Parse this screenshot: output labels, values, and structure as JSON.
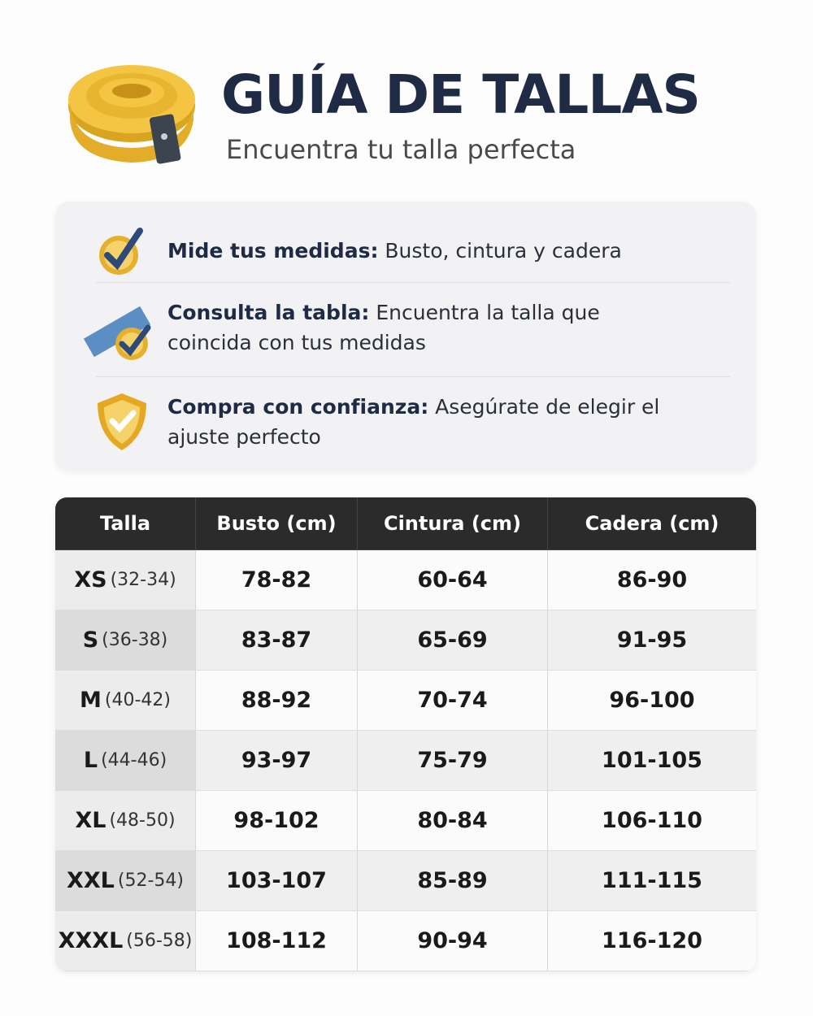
{
  "header": {
    "title": "GUÍA DE TALLAS",
    "subtitle": "Encuentra tu talla perfecta"
  },
  "steps": [
    {
      "label": "Mide tus medidas:",
      "text": "Busto, cintura y cadera"
    },
    {
      "label": "Consulta la tabla:",
      "text": "Encuentra la talla que coincida con tus medidas"
    },
    {
      "label": "Compra con confianza:",
      "text": "Asegúrate de elegir el ajuste perfecto"
    }
  ],
  "table": {
    "columns": [
      "Talla",
      "Busto (cm)",
      "Cintura (cm)",
      "Cadera (cm)"
    ],
    "rows": [
      {
        "size": "XS",
        "range": "(32-34)",
        "busto": "78-82",
        "cintura": "60-64",
        "cadera": "86-90"
      },
      {
        "size": "S",
        "range": "(36-38)",
        "busto": "83-87",
        "cintura": "65-69",
        "cadera": "91-95"
      },
      {
        "size": "M",
        "range": "(40-42)",
        "busto": "88-92",
        "cintura": "70-74",
        "cadera": "96-100"
      },
      {
        "size": "L",
        "range": "(44-46)",
        "busto": "93-97",
        "cintura": "75-79",
        "cadera": "101-105"
      },
      {
        "size": "XL",
        "range": "(48-50)",
        "busto": "98-102",
        "cintura": "80-84",
        "cadera": "106-110"
      },
      {
        "size": "XXL",
        "range": "(52-54)",
        "busto": "103-107",
        "cintura": "85-89",
        "cadera": "111-115"
      },
      {
        "size": "XXXL",
        "range": "(56-58)",
        "busto": "108-112",
        "cintura": "90-94",
        "cadera": "116-120"
      }
    ]
  }
}
